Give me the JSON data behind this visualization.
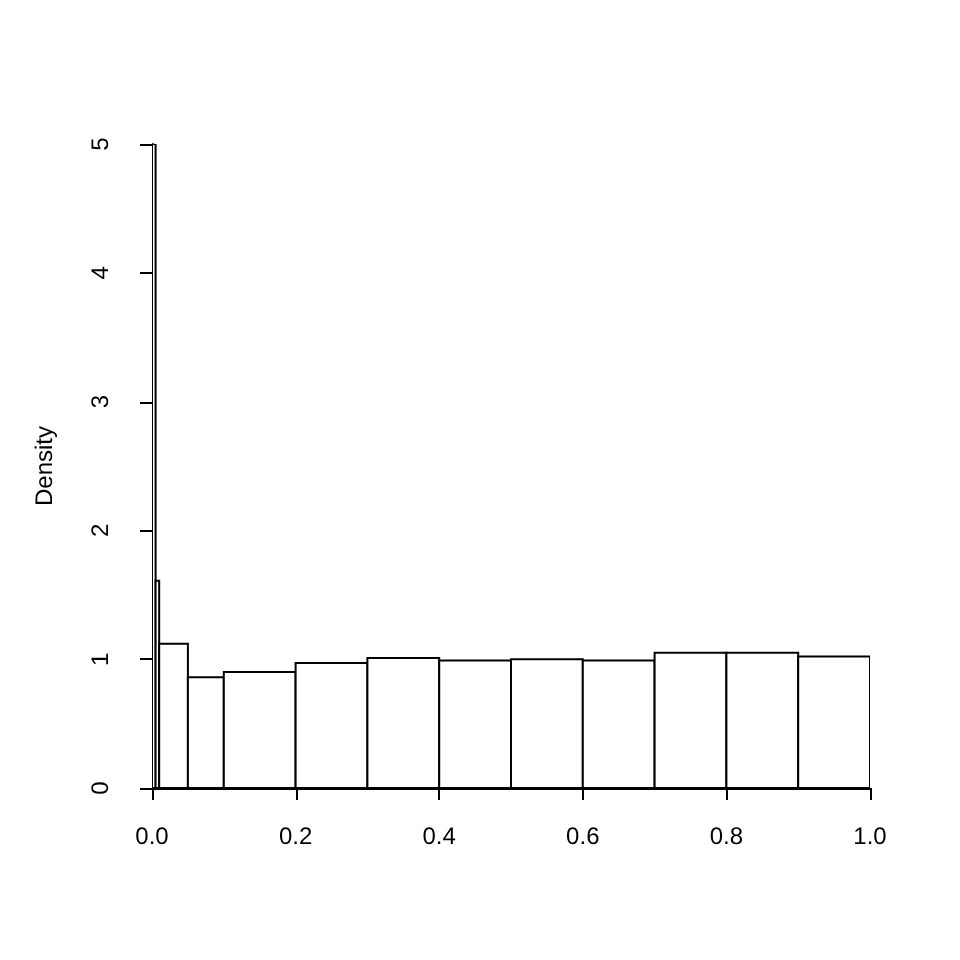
{
  "chart_data": {
    "type": "histogram",
    "ylabel": "Density",
    "bins": [
      0,
      0.005,
      0.01,
      0.05,
      0.1,
      0.2,
      0.3,
      0.4,
      0.5,
      0.6,
      0.7,
      0.8,
      0.9,
      1
    ],
    "values": [
      5,
      1.61,
      1.12,
      0.86,
      0.9,
      0.97,
      1.01,
      0.99,
      1.0,
      0.99,
      1.05,
      1.05,
      1.02
    ],
    "color": "#ffffff",
    "xlim": [
      0,
      1
    ],
    "xticks": [
      {
        "value": 0,
        "label": "0.0"
      },
      0.2,
      0.4,
      0.6,
      0.8,
      {
        "value": 1,
        "label": "1.0"
      }
    ],
    "ylim": [
      0,
      5
    ],
    "yticks": [
      0,
      1,
      2,
      3,
      4,
      5
    ],
    "grid": false
  }
}
